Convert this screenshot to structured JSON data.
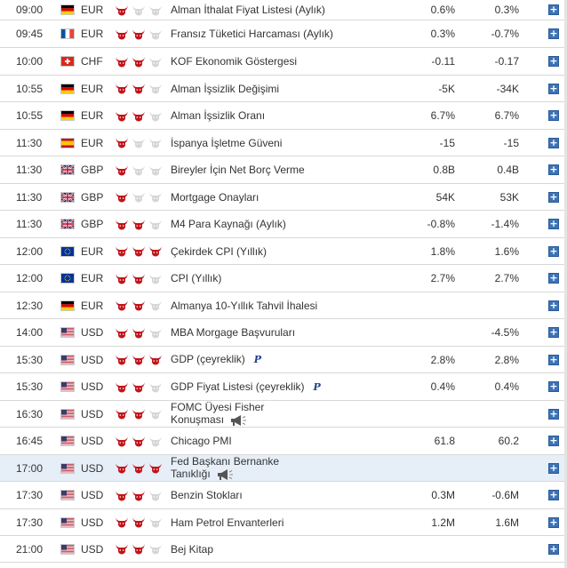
{
  "colors": {
    "bull_active": "#c0151b",
    "bull_inactive": "#d6d6d6",
    "row_highlight": "#e6eef8",
    "plus_button": "#3b73b8"
  },
  "plus_icon": "+",
  "p_badge": "P",
  "events": [
    {
      "time": "09:00",
      "flag": "germany-flag-icon",
      "currency": "EUR",
      "importance": 1,
      "name": "Alman İthalat Fiyat Listesi (Aylık)",
      "actual": "0.6%",
      "forecast": "0.3%"
    },
    {
      "time": "09:45",
      "flag": "france-flag-icon",
      "currency": "EUR",
      "importance": 2,
      "name": "Fransız Tüketici Harcaması (Aylık)",
      "actual": "0.3%",
      "forecast": "-0.7%"
    },
    {
      "time": "10:00",
      "flag": "switzerland-flag-icon",
      "currency": "CHF",
      "importance": 2,
      "name": "KOF Ekonomik Göstergesi",
      "actual": "-0.11",
      "forecast": "-0.17"
    },
    {
      "time": "10:55",
      "flag": "germany-flag-icon",
      "currency": "EUR",
      "importance": 2,
      "name": "Alman İşsizlik Değişimi",
      "actual": "-5K",
      "forecast": "-34K"
    },
    {
      "time": "10:55",
      "flag": "germany-flag-icon",
      "currency": "EUR",
      "importance": 2,
      "name": "Alman İşsizlik Oranı",
      "actual": "6.7%",
      "forecast": "6.7%"
    },
    {
      "time": "11:30",
      "flag": "spain-flag-icon",
      "currency": "EUR",
      "importance": 1,
      "name": "İspanya İşletme Güveni",
      "actual": "-15",
      "forecast": "-15"
    },
    {
      "time": "11:30",
      "flag": "uk-flag-icon",
      "currency": "GBP",
      "importance": 1,
      "name": "Bireyler İçin Net Borç Verme",
      "actual": "0.8B",
      "forecast": "0.4B"
    },
    {
      "time": "11:30",
      "flag": "uk-flag-icon",
      "currency": "GBP",
      "importance": 1,
      "name": "Mortgage Onayları",
      "actual": "54K",
      "forecast": "53K"
    },
    {
      "time": "11:30",
      "flag": "uk-flag-icon",
      "currency": "GBP",
      "importance": 2,
      "name": "M4 Para Kaynağı (Aylık)",
      "actual": "-0.8%",
      "forecast": "-1.4%"
    },
    {
      "time": "12:00",
      "flag": "eu-flag-icon",
      "currency": "EUR",
      "importance": 3,
      "name": "Çekirdek CPI (Yıllık)",
      "actual": "1.8%",
      "forecast": "1.6%"
    },
    {
      "time": "12:00",
      "flag": "eu-flag-icon",
      "currency": "EUR",
      "importance": 2,
      "name": "CPI (Yıllık)",
      "actual": "2.7%",
      "forecast": "2.7%"
    },
    {
      "time": "12:30",
      "flag": "germany-flag-icon",
      "currency": "EUR",
      "importance": 2,
      "name": "Almanya 10-Yıllık Tahvil İhalesi",
      "actual": "",
      "forecast": ""
    },
    {
      "time": "14:00",
      "flag": "usa-flag-icon",
      "currency": "USD",
      "importance": 2,
      "name": "MBA Morgage Başvuruları",
      "actual": "",
      "forecast": "-4.5%"
    },
    {
      "time": "15:30",
      "flag": "usa-flag-icon",
      "currency": "USD",
      "importance": 3,
      "name": "GDP (çeyreklik)",
      "p": true,
      "actual": "2.8%",
      "forecast": "2.8%"
    },
    {
      "time": "15:30",
      "flag": "usa-flag-icon",
      "currency": "USD",
      "importance": 2,
      "name": "GDP Fiyat Listesi (çeyreklik)",
      "p": true,
      "actual": "0.4%",
      "forecast": "0.4%"
    },
    {
      "time": "16:30",
      "flag": "usa-flag-icon",
      "currency": "USD",
      "importance": 2,
      "name": "FOMC Üyesi Fisher",
      "name2": "Konuşması",
      "speech": true,
      "actual": "",
      "forecast": ""
    },
    {
      "time": "16:45",
      "flag": "usa-flag-icon",
      "currency": "USD",
      "importance": 2,
      "name": "Chicago PMI",
      "actual": "61.8",
      "forecast": "60.2"
    },
    {
      "time": "17:00",
      "flag": "usa-flag-icon",
      "currency": "USD",
      "importance": 3,
      "name": "Fed Başkanı Bernanke",
      "name2": "Tanıklığı",
      "speech": true,
      "highlight": true,
      "actual": "",
      "forecast": ""
    },
    {
      "time": "17:30",
      "flag": "usa-flag-icon",
      "currency": "USD",
      "importance": 2,
      "name": "Benzin Stokları",
      "actual": "0.3M",
      "forecast": "-0.6M"
    },
    {
      "time": "17:30",
      "flag": "usa-flag-icon",
      "currency": "USD",
      "importance": 2,
      "name": "Ham Petrol Envanterleri",
      "actual": "1.2M",
      "forecast": "1.6M"
    },
    {
      "time": "21:00",
      "flag": "usa-flag-icon",
      "currency": "USD",
      "importance": 2,
      "name": "Bej Kitap",
      "actual": "",
      "forecast": ""
    }
  ]
}
